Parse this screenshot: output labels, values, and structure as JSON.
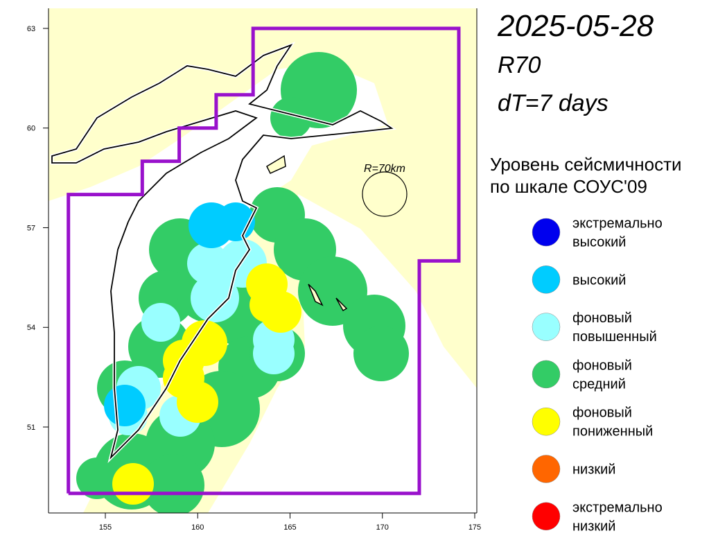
{
  "header": {
    "date": "2025-05-28",
    "radius": "R70",
    "window": "dT=7 days"
  },
  "map": {
    "circle_label": "R=70km",
    "lat_ticks": [
      63,
      60,
      57,
      54,
      51
    ],
    "lon_ticks": [
      155,
      160,
      165,
      170,
      175
    ]
  },
  "legend": {
    "title_lines": [
      "Уровень сейсмичности",
      "по шкале СОУС'09"
    ],
    "items": [
      {
        "lines": [
          "экстремально",
          "высокий"
        ],
        "color": "#0000ee"
      },
      {
        "lines": [
          "высокий"
        ],
        "color": "#00ccff"
      },
      {
        "lines": [
          "фоновый",
          "повышенный"
        ],
        "color": "#99ffff"
      },
      {
        "lines": [
          "фоновый",
          "средний"
        ],
        "color": "#33cc66"
      },
      {
        "lines": [
          "фоновый",
          "пониженный"
        ],
        "color": "#ffff00"
      },
      {
        "lines": [
          "низкий"
        ],
        "color": "#ff6600"
      },
      {
        "lines": [
          "экстремально",
          "низкий"
        ],
        "color": "#ff0000"
      }
    ]
  }
}
